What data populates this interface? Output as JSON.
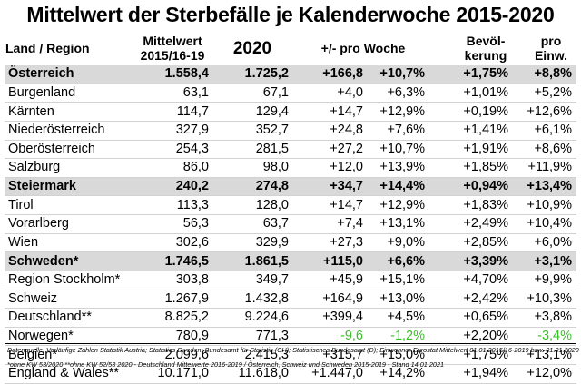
{
  "title": "Mittelwert der Sterbefälle je Kalenderwoche 2015-2020",
  "headers": {
    "region": "Land / Region",
    "mean_line1": "Mittelwert",
    "mean_line2": "2015/16-19",
    "y2020": "2020",
    "diff": "+/- pro Woche",
    "pop_line1": "Bevöl-",
    "pop_line2": "kerung",
    "per_line1": "pro",
    "per_line2": "Einw."
  },
  "rows": [
    {
      "region": "Österreich",
      "mean": "1.558,4",
      "y2020": "1.725,2",
      "diff_abs": "+166,8",
      "diff_pct": "+10,7%",
      "pop": "+1,75%",
      "per_capita": "+8,8%",
      "highlight": true,
      "negative": false
    },
    {
      "region": "Burgenland",
      "mean": "63,1",
      "y2020": "67,1",
      "diff_abs": "+4,0",
      "diff_pct": "+6,3%",
      "pop": "+1,01%",
      "per_capita": "+5,2%",
      "highlight": false,
      "negative": false
    },
    {
      "region": "Kärnten",
      "mean": "114,7",
      "y2020": "129,4",
      "diff_abs": "+14,7",
      "diff_pct": "+12,9%",
      "pop": "+0,19%",
      "per_capita": "+12,6%",
      "highlight": false,
      "negative": false
    },
    {
      "region": "Niederösterreich",
      "mean": "327,9",
      "y2020": "352,7",
      "diff_abs": "+24,8",
      "diff_pct": "+7,6%",
      "pop": "+1,41%",
      "per_capita": "+6,1%",
      "highlight": false,
      "negative": false
    },
    {
      "region": "Oberösterreich",
      "mean": "254,3",
      "y2020": "281,5",
      "diff_abs": "+27,2",
      "diff_pct": "+10,7%",
      "pop": "+1,91%",
      "per_capita": "+8,6%",
      "highlight": false,
      "negative": false
    },
    {
      "region": "Salzburg",
      "mean": "86,0",
      "y2020": "98,0",
      "diff_abs": "+12,0",
      "diff_pct": "+13,9%",
      "pop": "+1,85%",
      "per_capita": "+11,9%",
      "highlight": false,
      "negative": false
    },
    {
      "region": "Steiermark",
      "mean": "240,2",
      "y2020": "274,8",
      "diff_abs": "+34,7",
      "diff_pct": "+14,4%",
      "pop": "+0,94%",
      "per_capita": "+13,4%",
      "highlight": true,
      "negative": false
    },
    {
      "region": "Tirol",
      "mean": "113,3",
      "y2020": "128,0",
      "diff_abs": "+14,7",
      "diff_pct": "+12,9%",
      "pop": "+1,83%",
      "per_capita": "+10,9%",
      "highlight": false,
      "negative": false
    },
    {
      "region": "Vorarlberg",
      "mean": "56,3",
      "y2020": "63,7",
      "diff_abs": "+7,4",
      "diff_pct": "+13,1%",
      "pop": "+2,49%",
      "per_capita": "+10,4%",
      "highlight": false,
      "negative": false
    },
    {
      "region": "Wien",
      "mean": "302,6",
      "y2020": "329,9",
      "diff_abs": "+27,3",
      "diff_pct": "+9,0%",
      "pop": "+2,85%",
      "per_capita": "+6,0%",
      "highlight": false,
      "negative": false
    },
    {
      "region": "Schweden*",
      "mean": "1.746,5",
      "y2020": "1.861,5",
      "diff_abs": "+115,0",
      "diff_pct": "+6,6%",
      "pop": "+3,39%",
      "per_capita": "+3,1%",
      "highlight": true,
      "negative": false
    },
    {
      "region": "Region Stockholm*",
      "mean": "303,8",
      "y2020": "349,7",
      "diff_abs": "+45,9",
      "diff_pct": "+15,1%",
      "pop": "+4,70%",
      "per_capita": "+9,9%",
      "highlight": false,
      "negative": false
    },
    {
      "region": "Schweiz",
      "mean": "1.267,9",
      "y2020": "1.432,8",
      "diff_abs": "+164,9",
      "diff_pct": "+13,0%",
      "pop": "+2,42%",
      "per_capita": "+10,3%",
      "highlight": false,
      "negative": false
    },
    {
      "region": "Deutschland**",
      "mean": "8.825,2",
      "y2020": "9.224,6",
      "diff_abs": "+399,4",
      "diff_pct": "+4,5%",
      "pop": "+0,65%",
      "per_capita": "+3,8%",
      "highlight": false,
      "negative": false
    },
    {
      "region": "Norwegen*",
      "mean": "780,9",
      "y2020": "771,3",
      "diff_abs": "-9,6",
      "diff_pct": "-1,2%",
      "pop": "+2,20%",
      "per_capita": "-3,4%",
      "highlight": false,
      "negative": true
    },
    {
      "region": "Belgien*",
      "mean": "2.099,6",
      "y2020": "2.415,3",
      "diff_abs": "+315,7",
      "diff_pct": "+15,0%",
      "pop": "+1,75%",
      "per_capita": "+13,1%",
      "highlight": false,
      "negative": false
    },
    {
      "region": "England & Wales**",
      "mean": "10.171,0",
      "y2020": "11.618,0",
      "diff_abs": "+1.447,0",
      "diff_pct": "+14,2%",
      "pop": "+1,94%",
      "per_capita": "+12,0%",
      "highlight": false,
      "negative": false
    }
  ],
  "colors": {
    "highlight_row": "#d9d9d9",
    "negative_text": "#3bbf2a"
  },
  "footnotes": {
    "sources": "Datenquelle: Vorläufige Zahlen Statistik Austria; Statistics Sweden; Bundesamt für Statistik (CH); Statistisches Bundesamt (D); Einwohner Eurostat Mittelwert 01.01.2015/16-2019 bzw. 01.01.2020",
    "notes": "*ohne KW 53/2020 **ohne KW 52/53 2020 - Deutschland Mittelwerte 2016-2019 / Österreich, Schweiz und Schweden 2015-2019 - Stand 14.01.2021"
  }
}
